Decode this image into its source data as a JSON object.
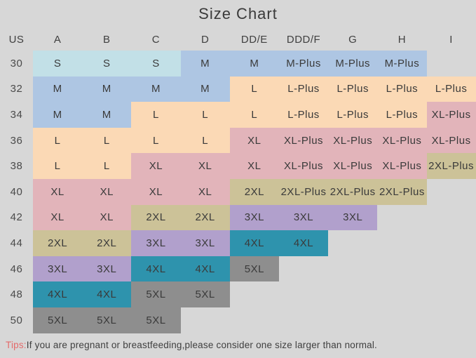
{
  "title": "Size Chart",
  "tips": {
    "label": "Tips:",
    "text": "If you are pregnant or breastfeeding,please consider one size larger than normal."
  },
  "colors": {
    "background": "#d7d7d7",
    "title_text": "#3a3a3a",
    "cell_text": "#3a3a3a",
    "tips_label": "#e56b6b",
    "size_groups": {
      "S": "#c2e0e7",
      "M": "#aec6e3",
      "L": "#fbd9b5",
      "XL": "#e2b4ba",
      "2XL": "#ccc298",
      "3XL": "#b1a0cc",
      "4XL": "#2e93ad",
      "5XL": "#8e8e8e"
    }
  },
  "chart_data": {
    "type": "table",
    "title": "Size Chart",
    "columns": [
      "US",
      "A",
      "B",
      "C",
      "D",
      "DD/E",
      "DDD/F",
      "G",
      "H",
      "I"
    ],
    "rows": [
      {
        "us": "30",
        "cells": [
          "S",
          "S",
          "S",
          "M",
          "M",
          "M-Plus",
          "M-Plus",
          "M-Plus",
          ""
        ]
      },
      {
        "us": "32",
        "cells": [
          "M",
          "M",
          "M",
          "M",
          "L",
          "L-Plus",
          "L-Plus",
          "L-Plus",
          "L-Plus"
        ]
      },
      {
        "us": "34",
        "cells": [
          "M",
          "M",
          "L",
          "L",
          "L",
          "L-Plus",
          "L-Plus",
          "L-Plus",
          "XL-Plus"
        ]
      },
      {
        "us": "36",
        "cells": [
          "L",
          "L",
          "L",
          "L",
          "XL",
          "XL-Plus",
          "XL-Plus",
          "XL-Plus",
          "XL-Plus"
        ]
      },
      {
        "us": "38",
        "cells": [
          "L",
          "L",
          "XL",
          "XL",
          "XL",
          "XL-Plus",
          "XL-Plus",
          "XL-Plus",
          "2XL-Plus"
        ]
      },
      {
        "us": "40",
        "cells": [
          "XL",
          "XL",
          "XL",
          "XL",
          "2XL",
          "2XL-Plus",
          "2XL-Plus",
          "2XL-Plus",
          ""
        ]
      },
      {
        "us": "42",
        "cells": [
          "XL",
          "XL",
          "2XL",
          "2XL",
          "3XL",
          "3XL",
          "3XL",
          "",
          ""
        ]
      },
      {
        "us": "44",
        "cells": [
          "2XL",
          "2XL",
          "3XL",
          "3XL",
          "4XL",
          "4XL",
          "",
          "",
          ""
        ]
      },
      {
        "us": "46",
        "cells": [
          "3XL",
          "3XL",
          "4XL",
          "4XL",
          "5XL",
          "",
          "",
          "",
          ""
        ]
      },
      {
        "us": "48",
        "cells": [
          "4XL",
          "4XL",
          "5XL",
          "5XL",
          "",
          "",
          "",
          "",
          ""
        ]
      },
      {
        "us": "50",
        "cells": [
          "5XL",
          "5XL",
          "5XL",
          "",
          "",
          "",
          "",
          "",
          ""
        ]
      }
    ]
  }
}
